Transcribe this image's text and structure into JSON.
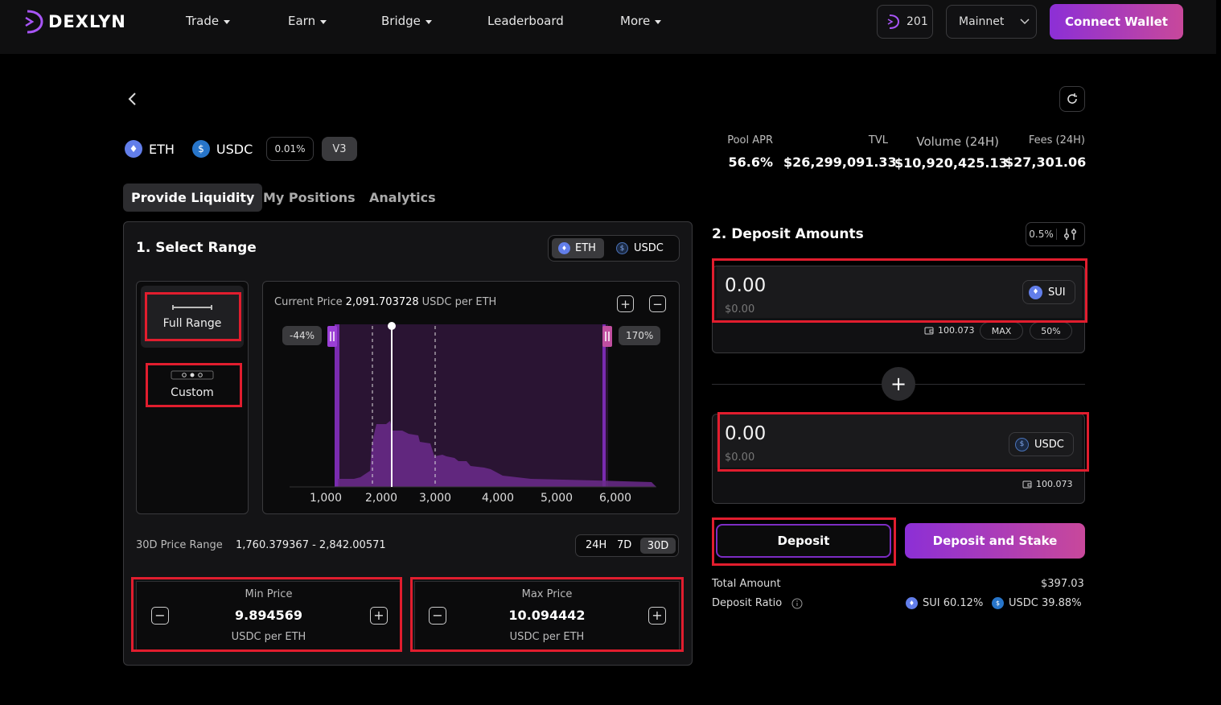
{
  "header": {
    "logo_text": "DEXLYN",
    "nav": [
      "Trade",
      "Earn",
      "Bridge",
      "Leaderboard",
      "More"
    ],
    "points": "201",
    "network": "Mainnet",
    "connect_label": "Connect Wallet"
  },
  "pool": {
    "token_a": "ETH",
    "token_b": "USDC",
    "fee_tier": "0.01%",
    "version": "V3",
    "stats": [
      {
        "label": "Pool APR",
        "value": "56.6%"
      },
      {
        "label": "TVL",
        "value": "$26,299,091.33"
      },
      {
        "label": "Volume (24H)",
        "value": "$10,920,425.13"
      },
      {
        "label": "Fees (24H)",
        "value": "$27,301.06"
      }
    ]
  },
  "tabs": [
    "Provide Liquidity",
    "My Positions",
    "Analytics"
  ],
  "select_range": {
    "title": "1. Select Range",
    "token_toggle": [
      "ETH",
      "USDC"
    ],
    "full_range_label": "Full Range",
    "custom_label": "Custom",
    "current_price_label": "Current Price",
    "current_price_value": "2,091.703728",
    "current_price_unit": "USDC per ETH",
    "min_pct": "-44%",
    "max_pct": "170%",
    "x_ticks": [
      "1,000",
      "2,000",
      "3,000",
      "4,000",
      "5,000",
      "6,000"
    ],
    "price_range_label": "30D Price Range",
    "price_range_value": "1,760.379367 - 2,842.00571",
    "periods": [
      "24H",
      "7D",
      "30D"
    ],
    "active_period": "30D",
    "min_price": {
      "label": "Min Price",
      "value": "9.894569",
      "unit": "USDC per ETH"
    },
    "max_price": {
      "label": "Max Price",
      "value": "10.094442",
      "unit": "USDC per ETH"
    }
  },
  "deposit": {
    "title": "2. Deposit Amounts",
    "slippage": "0.5%",
    "input_a": {
      "amount": "0.00",
      "usd": "$0.00",
      "token": "SUI",
      "balance": "100.073"
    },
    "input_b": {
      "amount": "0.00",
      "usd": "$0.00",
      "token": "USDC",
      "balance": "100.073"
    },
    "max_label": "MAX",
    "half_label": "50%",
    "deposit_label": "Deposit",
    "stake_label": "Deposit and Stake",
    "total_amount_label": "Total Amount",
    "total_amount_value": "$397.03",
    "ratio_label": "Deposit Ratio",
    "ratio_a": "SUI 60.12%",
    "ratio_b": "USDC 39.88%"
  },
  "colors": {
    "accent": "#8c2fd6",
    "accent2": "#c8489b",
    "highlight": "#e11d2e"
  }
}
